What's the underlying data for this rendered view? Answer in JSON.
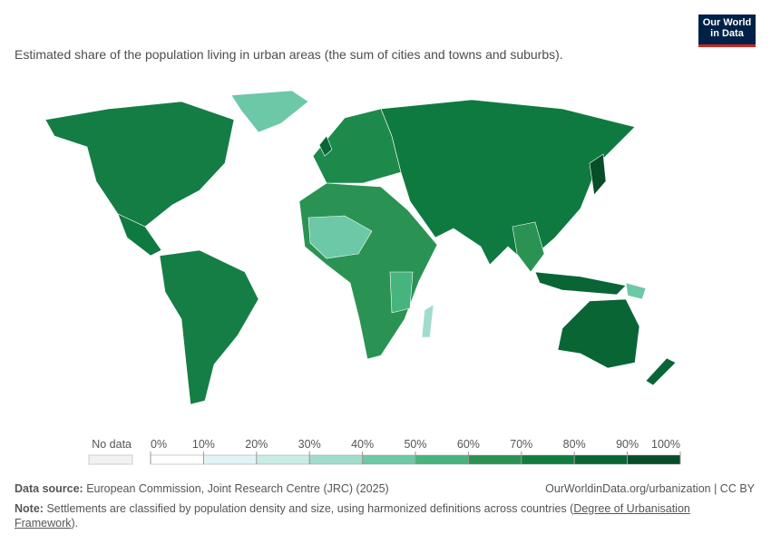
{
  "logo": [
    "Our World",
    "in Data"
  ],
  "subtitle": "Estimated share of the population living in urban areas (the sum of cities and towns and suburbs).",
  "legend": {
    "no_data_label": "No data",
    "ticks": [
      {
        "value": 0,
        "label": "0%"
      },
      {
        "value": 10,
        "label": "10%"
      },
      {
        "value": 20,
        "label": "20%"
      },
      {
        "value": 30,
        "label": "30%"
      },
      {
        "value": 40,
        "label": "40%"
      },
      {
        "value": 50,
        "label": "50%"
      },
      {
        "value": 60,
        "label": "60%"
      },
      {
        "value": 70,
        "label": "70%"
      },
      {
        "value": 80,
        "label": "80%"
      },
      {
        "value": 90,
        "label": "90%"
      },
      {
        "value": 100,
        "label": "100%"
      }
    ],
    "colors": [
      "#ffffff",
      "#e2f3f6",
      "#c9ece4",
      "#9fdccb",
      "#6cc8a6",
      "#46b47c",
      "#2a9353",
      "#117c40",
      "#0a6535",
      "#064d28"
    ]
  },
  "footer": {
    "source_label": "Data source:",
    "source": "European Commission, Joint Research Centre (JRC) (2025)",
    "url": "OurWorldinData.org/urbanization | CC BY",
    "note_label": "Note:",
    "note": "Settlements are classified by population density and size, using harmonized definitions across countries (",
    "note_link": "Degree of Urbanisation Framework",
    "note_end": ")."
  }
}
